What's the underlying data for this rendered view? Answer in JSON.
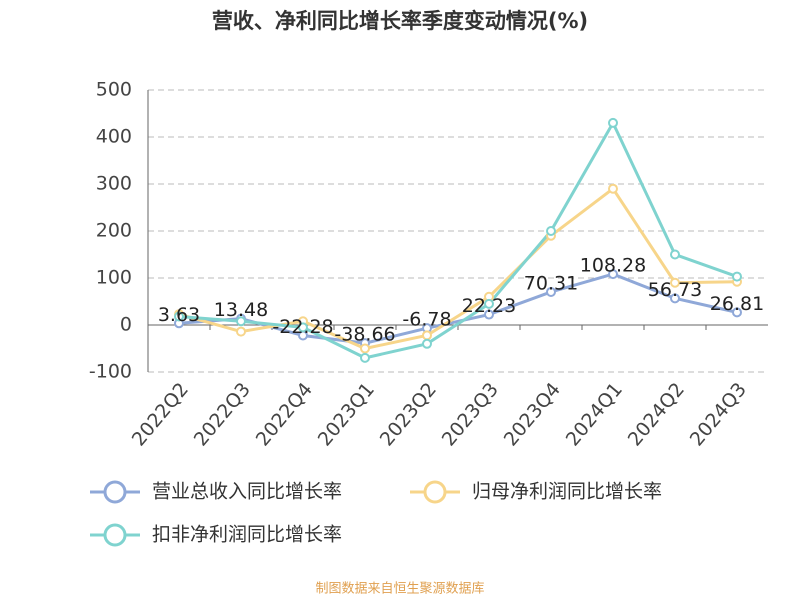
{
  "chart_data": {
    "type": "line",
    "title": "营收、净利同比增长率季度变动情况(%)",
    "categories": [
      "2022Q2",
      "2022Q3",
      "2022Q4",
      "2023Q1",
      "2023Q2",
      "2023Q3",
      "2023Q4",
      "2024Q1",
      "2024Q2",
      "2024Q3"
    ],
    "series": [
      {
        "name": "营业总收入同比增长率",
        "color": "#8fa8d8",
        "values": [
          3.63,
          13.48,
          -22.28,
          -38.66,
          -6.78,
          22.23,
          70.31,
          108.28,
          56.73,
          26.81
        ],
        "labels": true
      },
      {
        "name": "归母净利润同比增长率",
        "color": "#f7d58a",
        "values": [
          23,
          -14,
          8,
          -50,
          -22,
          60,
          190,
          290,
          90,
          92
        ]
      },
      {
        "name": "扣非净利润同比增长率",
        "color": "#7fd3cf",
        "values": [
          18,
          8,
          -5,
          -70,
          -40,
          45,
          200,
          430,
          150,
          103
        ]
      }
    ],
    "ylim": [
      -100,
      500
    ],
    "yticks": [
      -100,
      0,
      100,
      200,
      300,
      400,
      500
    ],
    "grid": true,
    "source": "制图数据来自恒生聚源数据库"
  }
}
